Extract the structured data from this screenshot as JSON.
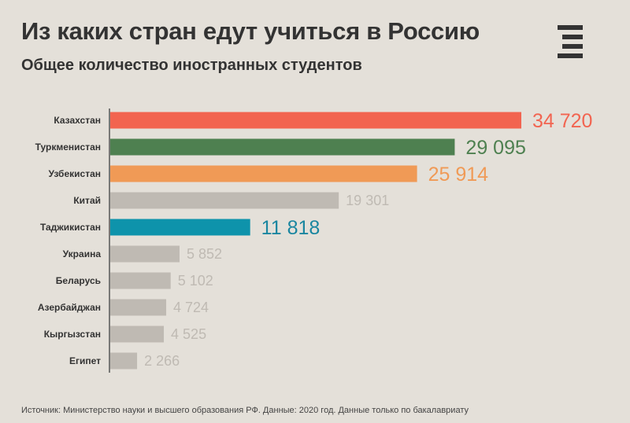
{
  "header": {
    "title": "Из каких стран едут учиться в Россию",
    "subtitle": "Общее количество иностранных студентов"
  },
  "logo": {
    "icon": "menu-e-logo-icon",
    "color": "#333333"
  },
  "chart_data": {
    "type": "bar",
    "orientation": "horizontal",
    "title": "Из каких стран едут учиться в Россию",
    "subtitle": "Общее количество иностранных студентов",
    "categories": [
      "Казахстан",
      "Туркменистан",
      "Узбекистан",
      "Китай",
      "Таджикистан",
      "Украина",
      "Беларусь",
      "Азербайджан",
      "Кыргызстан",
      "Египет"
    ],
    "values": [
      34720,
      29095,
      25914,
      19301,
      11818,
      5852,
      5102,
      4724,
      4525,
      2266
    ],
    "value_labels": [
      "34 720",
      "29 095",
      "25 914",
      "19 301",
      "11 818",
      "5 852",
      "5 102",
      "4 724",
      "4 525",
      "2 266"
    ],
    "colors": [
      "#f26450",
      "#4e8050",
      "#f09a56",
      "#bfbab3",
      "#0e93ab",
      "#bfbab3",
      "#bfbab3",
      "#bfbab3",
      "#bfbab3",
      "#bfbab3"
    ],
    "label_colors": [
      "#f26450",
      "#4e8050",
      "#f09a56",
      "#bfbab3",
      "#1a86a0",
      "#bfbab3",
      "#bfbab3",
      "#bfbab3",
      "#bfbab3",
      "#bfbab3"
    ],
    "highlighted": [
      true,
      true,
      true,
      false,
      true,
      false,
      false,
      false,
      false,
      false
    ],
    "xlim": [
      0,
      34720
    ],
    "xlabel": "",
    "ylabel": "",
    "grid": false,
    "legend": "none"
  },
  "footer": {
    "source": "Источник: Министерство науки и высшего образования РФ. Данные: 2020 год. Данные только по бакалавриату"
  }
}
